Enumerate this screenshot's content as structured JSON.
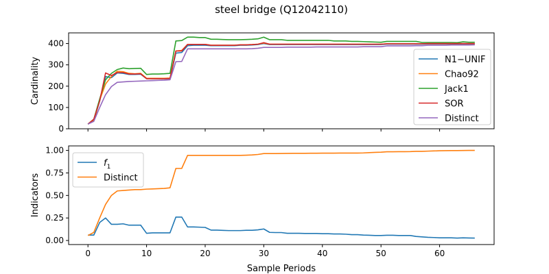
{
  "figure": {
    "title": "steel bridge (Q12042110)",
    "xlabel": "Sample Periods"
  },
  "chart_data": [
    {
      "type": "line",
      "ylabel": "Cardinality",
      "xlim": [
        -3.3,
        69.3
      ],
      "ylim": [
        0,
        450
      ],
      "xticks": [
        0,
        10,
        20,
        30,
        40,
        50,
        60
      ],
      "yticks": [
        0,
        100,
        200,
        300,
        400
      ],
      "show_xticklabels": false,
      "grid": false,
      "legend_position": "lower-right",
      "series": [
        {
          "name": "N1−UNIF",
          "color": "#1f77b4",
          "values": [
            22,
            38,
            130,
            245,
            240,
            262,
            260,
            255,
            255,
            256,
            235,
            235,
            235,
            235,
            235,
            355,
            358,
            390,
            392,
            392,
            392,
            390,
            390,
            390,
            390,
            390,
            392,
            392,
            393,
            395,
            400,
            395,
            395,
            395,
            395,
            395,
            395,
            395,
            395,
            395,
            395,
            395,
            395,
            395,
            395,
            395,
            395,
            395,
            395,
            395,
            395,
            397,
            397,
            397,
            397,
            397,
            397,
            397,
            398,
            398,
            398,
            398,
            398,
            398,
            398,
            398,
            398
          ]
        },
        {
          "name": "Chao92",
          "color": "#ff7f0e",
          "values": [
            22,
            38,
            135,
            210,
            245,
            270,
            268,
            260,
            258,
            260,
            237,
            237,
            237,
            237,
            238,
            365,
            368,
            396,
            396,
            396,
            396,
            392,
            392,
            392,
            392,
            392,
            394,
            394,
            395,
            397,
            402,
            397,
            397,
            397,
            397,
            397,
            397,
            397,
            397,
            397,
            397,
            397,
            397,
            397,
            397,
            397,
            397,
            397,
            397,
            397,
            397,
            399,
            399,
            399,
            399,
            399,
            399,
            399,
            399,
            399,
            399,
            399,
            399,
            399,
            399,
            399,
            399
          ]
        },
        {
          "name": "Jack1",
          "color": "#2ca02c",
          "values": [
            22,
            45,
            140,
            230,
            260,
            278,
            285,
            282,
            283,
            284,
            255,
            257,
            257,
            258,
            260,
            412,
            414,
            430,
            430,
            428,
            428,
            420,
            420,
            419,
            418,
            418,
            418,
            419,
            420,
            422,
            430,
            418,
            418,
            418,
            415,
            415,
            415,
            415,
            415,
            415,
            415,
            415,
            412,
            412,
            412,
            410,
            410,
            409,
            408,
            407,
            406,
            410,
            410,
            410,
            410,
            410,
            410,
            405,
            405,
            405,
            405,
            405,
            405,
            404,
            408,
            406,
            406
          ]
        },
        {
          "name": "SOR",
          "color": "#d62728",
          "values": [
            22,
            45,
            130,
            262,
            250,
            264,
            264,
            257,
            257,
            258,
            235,
            235,
            235,
            235,
            236,
            365,
            365,
            396,
            396,
            396,
            396,
            392,
            392,
            392,
            392,
            392,
            394,
            394,
            395,
            397,
            404,
            397,
            397,
            397,
            397,
            397,
            397,
            397,
            397,
            397,
            397,
            397,
            397,
            397,
            397,
            397,
            397,
            397,
            397,
            397,
            397,
            399,
            399,
            399,
            399,
            399,
            399,
            399,
            400,
            400,
            400,
            400,
            400,
            400,
            400,
            400,
            400
          ]
        },
        {
          "name": "Distinct",
          "color": "#9467bd",
          "values": [
            22,
            35,
            100,
            160,
            198,
            218,
            220,
            222,
            223,
            224,
            225,
            226,
            227,
            228,
            230,
            315,
            316,
            375,
            375,
            375,
            375,
            375,
            375,
            375,
            375,
            375,
            375,
            375,
            376,
            378,
            382,
            382,
            382,
            382,
            383,
            383,
            383,
            383,
            383,
            384,
            384,
            384,
            384,
            384,
            384,
            384,
            384,
            385,
            385,
            385,
            385,
            389,
            389,
            389,
            389,
            389,
            390,
            390,
            392,
            392,
            392,
            392,
            393,
            393,
            393,
            393,
            394
          ]
        }
      ]
    },
    {
      "type": "line",
      "ylabel": "Indicators",
      "xlim": [
        -3.3,
        69.3
      ],
      "ylim": [
        -0.045,
        1.05
      ],
      "xticks": [
        0,
        10,
        20,
        30,
        40,
        50,
        60
      ],
      "yticks": [
        0.0,
        0.25,
        0.5,
        0.75,
        1.0
      ],
      "ytick_labels": [
        "0.00",
        "0.25",
        "0.50",
        "0.75",
        "1.00"
      ],
      "xtick_labels": [
        "0",
        "10",
        "20",
        "30",
        "40",
        "50",
        "60"
      ],
      "grid": false,
      "legend_position": "upper-left",
      "series": [
        {
          "name": "f",
          "name_sub": "1",
          "color": "#1f77b4",
          "values": [
            0.06,
            0.06,
            0.2,
            0.25,
            0.18,
            0.18,
            0.185,
            0.17,
            0.17,
            0.17,
            0.08,
            0.085,
            0.085,
            0.085,
            0.085,
            0.26,
            0.26,
            0.15,
            0.15,
            0.148,
            0.145,
            0.115,
            0.115,
            0.112,
            0.11,
            0.11,
            0.11,
            0.113,
            0.113,
            0.118,
            0.128,
            0.09,
            0.088,
            0.088,
            0.08,
            0.08,
            0.08,
            0.078,
            0.078,
            0.078,
            0.075,
            0.075,
            0.072,
            0.072,
            0.07,
            0.065,
            0.065,
            0.06,
            0.058,
            0.055,
            0.055,
            0.058,
            0.058,
            0.055,
            0.055,
            0.055,
            0.045,
            0.04,
            0.035,
            0.033,
            0.03,
            0.03,
            0.03,
            0.027,
            0.03,
            0.028,
            0.027
          ]
        },
        {
          "name": "Distinct",
          "color": "#ff7f0e",
          "values": [
            0.055,
            0.09,
            0.25,
            0.4,
            0.5,
            0.55,
            0.555,
            0.56,
            0.565,
            0.565,
            0.57,
            0.572,
            0.575,
            0.578,
            0.585,
            0.8,
            0.8,
            0.945,
            0.945,
            0.945,
            0.945,
            0.945,
            0.945,
            0.945,
            0.945,
            0.945,
            0.945,
            0.947,
            0.95,
            0.955,
            0.965,
            0.965,
            0.965,
            0.966,
            0.967,
            0.968,
            0.968,
            0.968,
            0.969,
            0.969,
            0.97,
            0.97,
            0.97,
            0.971,
            0.971,
            0.971,
            0.971,
            0.972,
            0.975,
            0.978,
            0.98,
            0.985,
            0.985,
            0.986,
            0.986,
            0.987,
            0.99,
            0.99,
            0.992,
            0.994,
            0.996,
            0.997,
            0.998,
            0.998,
            0.999,
            1.0,
            1.0
          ]
        }
      ]
    }
  ]
}
